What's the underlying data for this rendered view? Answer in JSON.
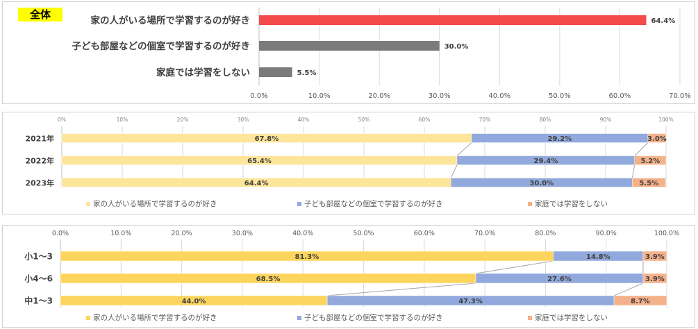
{
  "badge": "全体",
  "chart_data": [
    {
      "type": "bar",
      "orientation": "horizontal",
      "categories": [
        "家の人がいる場所で学習するのが好き",
        "子ども部屋などの個室で学習するのが好き",
        "家庭では学習をしない"
      ],
      "values": [
        64.4,
        30.0,
        5.5
      ],
      "value_labels": [
        "64.4%",
        "30.0%",
        "5.5%"
      ],
      "colors": [
        "#f34a4a",
        "#7b7b7b",
        "#7b7b7b"
      ],
      "xlim": [
        0,
        70
      ],
      "xticks": [
        "0.0%",
        "10.0%",
        "20.0%",
        "30.0%",
        "40.0%",
        "50.0%",
        "60.0%",
        "70.0%"
      ]
    },
    {
      "type": "bar",
      "orientation": "horizontal",
      "stacked": true,
      "categories": [
        "2021年",
        "2022年",
        "2023年"
      ],
      "series": [
        {
          "name": "家の人がいる場所で学習するのが好き",
          "values": [
            67.8,
            65.4,
            64.4
          ],
          "labels": [
            "67.8%",
            "65.4%",
            "64.4%"
          ],
          "color": "#fde59a"
        },
        {
          "name": "子ども部屋などの個室で学習するのが好き",
          "values": [
            29.2,
            29.4,
            30.0
          ],
          "labels": [
            "29.2%",
            "29.4%",
            "30.0%"
          ],
          "color": "#91a9dc"
        },
        {
          "name": "家庭では学習をしない",
          "values": [
            3.0,
            5.2,
            5.5
          ],
          "labels": [
            "3.0%",
            "5.2%",
            "5.5%"
          ],
          "color": "#f4b18a"
        }
      ],
      "xlim": [
        0,
        100
      ],
      "xticks": [
        "0%",
        "10%",
        "20%",
        "30%",
        "40%",
        "50%",
        "60%",
        "70%",
        "80%",
        "90%",
        "100%"
      ],
      "legend": "bottom"
    },
    {
      "type": "bar",
      "orientation": "horizontal",
      "stacked": true,
      "categories": [
        "小1～3",
        "小4～6",
        "中1～3"
      ],
      "series": [
        {
          "name": "家の人がいる場所で学習するのが好き",
          "values": [
            81.3,
            68.5,
            44.0
          ],
          "labels": [
            "81.3%",
            "68.5%",
            "44.0%"
          ],
          "color": "#fdd55e"
        },
        {
          "name": "子ども部屋などの個室で学習するのが好き",
          "values": [
            14.8,
            27.6,
            47.3
          ],
          "labels": [
            "14.8%",
            "27.6%",
            "47.3%"
          ],
          "color": "#91a9dc"
        },
        {
          "name": "家庭では学習をしない",
          "values": [
            3.9,
            3.9,
            8.7
          ],
          "labels": [
            "3.9%",
            "3.9%",
            "8.7%"
          ],
          "color": "#f4b18a"
        }
      ],
      "xlim": [
        0,
        100
      ],
      "xticks": [
        "0.0%",
        "10.0%",
        "20.0%",
        "30.0%",
        "40.0%",
        "50.0%",
        "60.0%",
        "70.0%",
        "80.0%",
        "90.0%",
        "100.0%"
      ],
      "legend": "bottom"
    }
  ]
}
